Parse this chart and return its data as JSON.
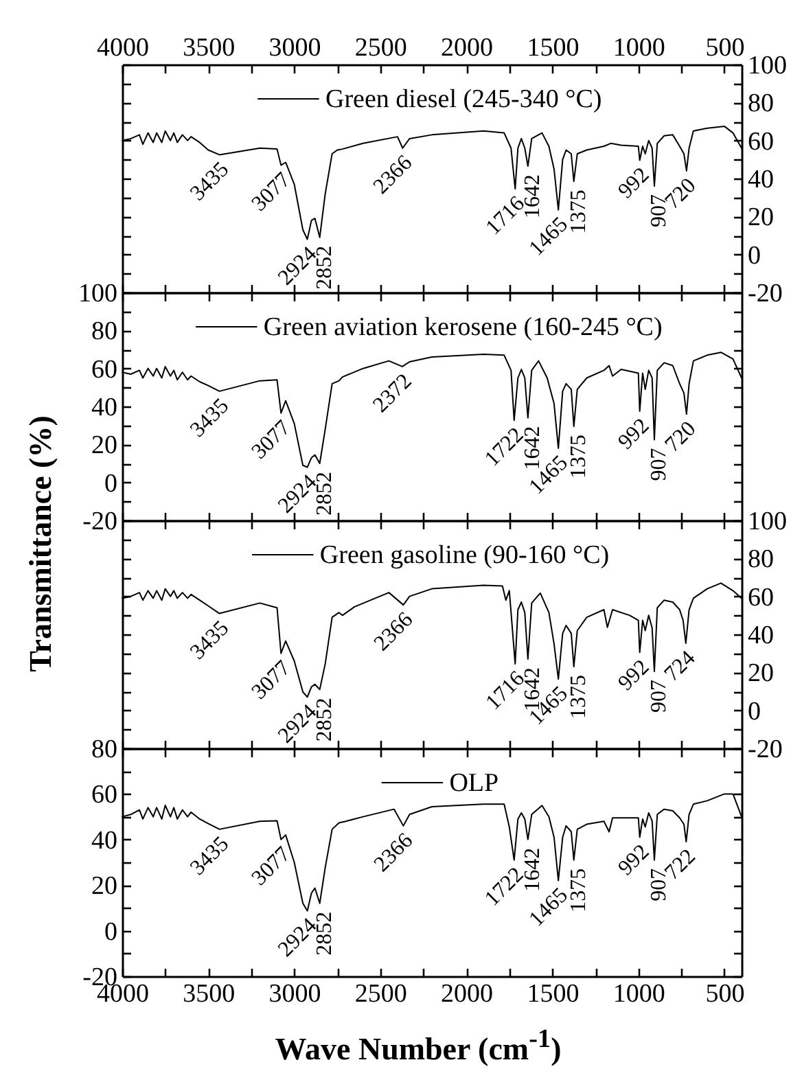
{
  "chart_data": [
    {
      "type": "line",
      "xlim": [
        4000,
        400
      ],
      "tick_labels": "y",
      "x2lim": [
        4000,
        400
      ],
      "x2ticks": [
        4000,
        {
          "value": 3750,
          "label": null
        },
        3500,
        {
          "value": 3250,
          "label": null
        },
        3000,
        {
          "value": 2750,
          "label": null
        },
        2500,
        {
          "value": 2250,
          "label": null
        },
        2000,
        {
          "value": 1750,
          "label": null
        },
        1500,
        {
          "value": 1250,
          "label": null
        },
        1000,
        {
          "value": 750,
          "label": null
        },
        500
      ],
      "ylim": [
        -20,
        100
      ],
      "yticks": [
        -20,
        {
          "value": -10,
          "label": null
        },
        0,
        {
          "value": 10,
          "label": null
        },
        20,
        {
          "value": 30,
          "label": null
        },
        40,
        {
          "value": 50,
          "label": null
        },
        60,
        {
          "value": 70,
          "label": null
        },
        80,
        {
          "value": 90,
          "label": null
        },
        100
      ],
      "legend": "top",
      "x": [
        4000,
        3950,
        3900,
        3880,
        3850,
        3820,
        3800,
        3770,
        3750,
        3720,
        3700,
        3680,
        3650,
        3620,
        3600,
        3550,
        3500,
        3435,
        3200,
        3100,
        3077,
        3050,
        3000,
        2950,
        2924,
        2900,
        2880,
        2852,
        2820,
        2780,
        2750,
        2720,
        2600,
        2400,
        2370,
        2330,
        2200,
        1900,
        1780,
        1740,
        1716,
        1700,
        1680,
        1660,
        1642,
        1620,
        1560,
        1520,
        1490,
        1465,
        1440,
        1420,
        1390,
        1375,
        1355,
        1300,
        1200,
        1160,
        1100,
        1000,
        992,
        975,
        960,
        940,
        920,
        907,
        890,
        850,
        800,
        760,
        735,
        720,
        705,
        680,
        600,
        500,
        450,
        400
      ],
      "series": [
        {
          "name": "Green diesel (245-340 °C)",
          "color": "#000000",
          "values": [
            60,
            61,
            63,
            58,
            64,
            59,
            64,
            59,
            65,
            60,
            64,
            59,
            63,
            60,
            62,
            59,
            55,
            52.5,
            56,
            55.5,
            47,
            48.5,
            37,
            13,
            8,
            18,
            19,
            9,
            32,
            53,
            55,
            55.5,
            58.5,
            62,
            56,
            61,
            63,
            65,
            64,
            56,
            34.5,
            56,
            61,
            56,
            46.5,
            61,
            64,
            57,
            45,
            23.5,
            50,
            55,
            53,
            38.5,
            53,
            55,
            57,
            58.5,
            57.5,
            57,
            49.6,
            57,
            53,
            60,
            56,
            36,
            58.5,
            62.5,
            63,
            57,
            53,
            44,
            56,
            65,
            66.5,
            67.5,
            64,
            56
          ]
        }
      ],
      "annotations": [
        {
          "text": "3435",
          "x": 3435,
          "y": 52.5
        },
        {
          "text": "3077",
          "x": 3077,
          "y": 47
        },
        {
          "text": "2924",
          "x": 2924,
          "y": 8
        },
        {
          "text": "2852",
          "x": 2852,
          "y": 9
        },
        {
          "text": "2366",
          "x": 2370,
          "y": 56
        },
        {
          "text": "1716",
          "x": 1716,
          "y": 34.5
        },
        {
          "text": "1642",
          "x": 1642,
          "y": 46.5
        },
        {
          "text": "1465",
          "x": 1465,
          "y": 23.5
        },
        {
          "text": "1375",
          "x": 1375,
          "y": 38.5
        },
        {
          "text": "992",
          "x": 992,
          "y": 49.6
        },
        {
          "text": "907",
          "x": 907,
          "y": 36
        },
        {
          "text": "720",
          "x": 720,
          "y": 44
        }
      ]
    },
    {
      "type": "line",
      "xlim": [
        4000,
        400
      ],
      "xticks": [
        4000,
        {
          "value": 3750,
          "label": null
        },
        3500,
        {
          "value": 3250,
          "label": null
        },
        3000,
        {
          "value": 2750,
          "label": null
        },
        2500,
        {
          "value": 2250,
          "label": null
        },
        2000,
        {
          "value": 1750,
          "label": null
        },
        1500,
        {
          "value": 1250,
          "label": null
        },
        1000,
        {
          "value": 750,
          "label": null
        },
        500
      ],
      "ylim": [
        -20,
        100
      ],
      "yticks": [
        -20,
        {
          "value": -10,
          "label": null
        },
        0,
        {
          "value": 10,
          "label": null
        },
        20,
        {
          "value": 30,
          "label": null
        },
        40,
        {
          "value": 50,
          "label": null
        },
        60,
        {
          "value": 70,
          "label": null
        },
        80,
        {
          "value": 90,
          "label": null
        },
        100
      ],
      "tick_labels": "y",
      "legend": "top",
      "ylabel": "Transmittance (%)",
      "x": [
        4000,
        3950,
        3900,
        3880,
        3850,
        3820,
        3800,
        3770,
        3750,
        3720,
        3700,
        3680,
        3650,
        3620,
        3600,
        3550,
        3500,
        3435,
        3200,
        3100,
        3077,
        3050,
        3000,
        2950,
        2924,
        2900,
        2880,
        2852,
        2820,
        2780,
        2740,
        2720,
        2600,
        2450,
        2372,
        2330,
        2200,
        1900,
        1780,
        1740,
        1722,
        1700,
        1680,
        1660,
        1642,
        1620,
        1580,
        1530,
        1490,
        1465,
        1440,
        1420,
        1390,
        1375,
        1355,
        1300,
        1200,
        1170,
        1150,
        1100,
        1000,
        992,
        975,
        960,
        940,
        920,
        907,
        890,
        850,
        800,
        760,
        735,
        720,
        705,
        680,
        600,
        520,
        450,
        400
      ],
      "series": [
        {
          "name": "Green aviation kerosene (160-245 °C)",
          "color": "#000000",
          "values": [
            58,
            57,
            59,
            55,
            60,
            56,
            60,
            55,
            61,
            56,
            59,
            54,
            58,
            54,
            56,
            53,
            51,
            48,
            53.5,
            54,
            36.5,
            43,
            31,
            9,
            8,
            13,
            14.5,
            10,
            28,
            52,
            53.5,
            55.5,
            60,
            64,
            61,
            63.5,
            66,
            67.5,
            67,
            59,
            32.7,
            55,
            59.5,
            55,
            34,
            59,
            64,
            55,
            41.5,
            18,
            48,
            52,
            49,
            29.5,
            49,
            55,
            59,
            61.5,
            56,
            59.5,
            57.5,
            37.5,
            57.5,
            49,
            59,
            55,
            22.5,
            59,
            63,
            61.5,
            52,
            47,
            36,
            52,
            64,
            67,
            68.5,
            65,
            55
          ]
        }
      ],
      "annotations": [
        {
          "text": "3435",
          "x": 3435,
          "y": 48
        },
        {
          "text": "3077",
          "x": 3077,
          "y": 36.5
        },
        {
          "text": "2924",
          "x": 2924,
          "y": 8
        },
        {
          "text": "2852",
          "x": 2852,
          "y": 10
        },
        {
          "text": "2372",
          "x": 2372,
          "y": 61
        },
        {
          "text": "1722",
          "x": 1722,
          "y": 32.7
        },
        {
          "text": "1642",
          "x": 1642,
          "y": 34
        },
        {
          "text": "1465",
          "x": 1465,
          "y": 18
        },
        {
          "text": "1375",
          "x": 1375,
          "y": 29.5
        },
        {
          "text": "992",
          "x": 992,
          "y": 37.5
        },
        {
          "text": "907",
          "x": 907,
          "y": 22.5
        },
        {
          "text": "720",
          "x": 720,
          "y": 36
        }
      ]
    },
    {
      "type": "line",
      "xlim": [
        4000,
        400
      ],
      "xticks": [
        4000,
        {
          "value": 3750,
          "label": null
        },
        3500,
        {
          "value": 3250,
          "label": null
        },
        3000,
        {
          "value": 2750,
          "label": null
        },
        2500,
        {
          "value": 2250,
          "label": null
        },
        2000,
        {
          "value": 1750,
          "label": null
        },
        1500,
        {
          "value": 1250,
          "label": null
        },
        1000,
        {
          "value": 750,
          "label": null
        },
        500
      ],
      "ylim": [
        -20,
        100
      ],
      "yticks": [
        -20,
        {
          "value": -10,
          "label": null
        },
        0,
        {
          "value": 10,
          "label": null
        },
        20,
        {
          "value": 30,
          "label": null
        },
        40,
        {
          "value": 50,
          "label": null
        },
        60,
        {
          "value": 70,
          "label": null
        },
        80,
        {
          "value": 90,
          "label": null
        },
        100
      ],
      "tick_labels": "y",
      "legend": "top",
      "x": [
        4000,
        3950,
        3900,
        3880,
        3850,
        3820,
        3800,
        3770,
        3750,
        3720,
        3700,
        3680,
        3650,
        3620,
        3600,
        3550,
        3500,
        3435,
        3200,
        3100,
        3077,
        3050,
        3000,
        2950,
        2924,
        2900,
        2880,
        2852,
        2820,
        2780,
        2740,
        2720,
        2650,
        2450,
        2366,
        2330,
        2200,
        1900,
        1790,
        1770,
        1750,
        1716,
        1700,
        1680,
        1660,
        1642,
        1620,
        1570,
        1520,
        1490,
        1465,
        1440,
        1420,
        1390,
        1375,
        1355,
        1300,
        1200,
        1180,
        1150,
        1050,
        1000,
        992,
        975,
        960,
        940,
        920,
        907,
        890,
        850,
        800,
        760,
        740,
        724,
        705,
        680,
        600,
        520,
        450,
        400
      ],
      "series": [
        {
          "name": "Green gasoline (90-160 °C)",
          "color": "#000000",
          "values": [
            59,
            60,
            62,
            58,
            63,
            59,
            63,
            58,
            64,
            60,
            63,
            59,
            62,
            59,
            61,
            58,
            55,
            51,
            56.5,
            54,
            30,
            36.5,
            26,
            9.7,
            7,
            12.4,
            13.7,
            11,
            24.5,
            49,
            51.5,
            50,
            54.5,
            62,
            55.5,
            60,
            64,
            65.8,
            65.5,
            58,
            63,
            24.5,
            53,
            57,
            51.5,
            27,
            56.5,
            61.7,
            51.5,
            35,
            16.5,
            40.5,
            44.7,
            40.5,
            23,
            42,
            49,
            53,
            43.7,
            53,
            50,
            47.4,
            30.5,
            47.4,
            42,
            50,
            43.4,
            20.5,
            54,
            58,
            57,
            53,
            47.4,
            35.3,
            53,
            59,
            64,
            67,
            63,
            59
          ]
        }
      ],
      "annotations": [
        {
          "text": "3435",
          "x": 3435,
          "y": 51
        },
        {
          "text": "3077",
          "x": 3077,
          "y": 30
        },
        {
          "text": "2924",
          "x": 2924,
          "y": 7
        },
        {
          "text": "2852",
          "x": 2852,
          "y": 11
        },
        {
          "text": "2366",
          "x": 2366,
          "y": 55.5
        },
        {
          "text": "1716",
          "x": 1716,
          "y": 24.5
        },
        {
          "text": "1642",
          "x": 1642,
          "y": 27
        },
        {
          "text": "1465",
          "x": 1465,
          "y": 16.5
        },
        {
          "text": "1375",
          "x": 1375,
          "y": 23
        },
        {
          "text": "992",
          "x": 992,
          "y": 30.5
        },
        {
          "text": "907",
          "x": 907,
          "y": 20.5
        },
        {
          "text": "724",
          "x": 724,
          "y": 35.3
        }
      ]
    },
    {
      "type": "line",
      "xlim": [
        4000,
        400
      ],
      "xticks": [
        4000,
        {
          "value": 3750,
          "label": null
        },
        3500,
        {
          "value": 3250,
          "label": null
        },
        3000,
        {
          "value": 2750,
          "label": null
        },
        2500,
        {
          "value": 2250,
          "label": null
        },
        2000,
        {
          "value": 1750,
          "label": null
        },
        1500,
        {
          "value": 1250,
          "label": null
        },
        1000,
        {
          "value": 750,
          "label": null
        },
        500
      ],
      "ylim": [
        -20,
        80
      ],
      "yticks": [
        -20,
        {
          "value": -10,
          "label": null
        },
        0,
        {
          "value": 10,
          "label": null
        },
        20,
        {
          "value": 30,
          "label": null
        },
        40,
        {
          "value": 50,
          "label": null
        },
        60,
        {
          "value": 70,
          "label": null
        },
        80
      ],
      "legend": "top",
      "xlabel": "Wave Number (cm$^{-1}$)",
      "x": [
        4000,
        3950,
        3900,
        3880,
        3850,
        3820,
        3800,
        3770,
        3750,
        3720,
        3700,
        3680,
        3650,
        3620,
        3600,
        3550,
        3500,
        3435,
        3200,
        3100,
        3077,
        3050,
        3000,
        2950,
        2924,
        2900,
        2880,
        2852,
        2820,
        2780,
        2740,
        2700,
        2600,
        2420,
        2366,
        2330,
        2200,
        1900,
        1780,
        1750,
        1722,
        1700,
        1680,
        1660,
        1642,
        1620,
        1560,
        1520,
        1490,
        1465,
        1440,
        1420,
        1390,
        1375,
        1355,
        1300,
        1200,
        1170,
        1150,
        1000,
        992,
        975,
        960,
        940,
        920,
        907,
        890,
        850,
        800,
        760,
        735,
        722,
        705,
        680,
        600,
        500,
        450,
        400
      ],
      "series": [
        {
          "name": "OLP",
          "color": "#000000",
          "values": [
            50,
            51,
            53,
            49,
            54,
            50,
            54,
            49,
            55,
            50,
            54,
            49,
            53,
            50,
            52,
            49,
            47,
            44.5,
            48,
            48.2,
            40,
            42,
            30,
            12,
            8.7,
            16.5,
            18.7,
            12,
            27.7,
            44.5,
            47.3,
            48,
            50,
            53.3,
            46,
            51,
            54.4,
            55.5,
            55.5,
            45.5,
            31,
            49,
            51.7,
            49,
            40,
            51,
            54.9,
            50,
            41,
            22,
            41,
            46,
            43.4,
            31,
            44.5,
            46.7,
            48,
            43.4,
            49.5,
            49.5,
            41,
            49,
            45.5,
            51.7,
            48.2,
            31,
            51,
            53.3,
            52.6,
            49.5,
            46.7,
            39,
            51,
            55.5,
            57,
            60,
            60,
            50
          ]
        }
      ],
      "annotations": [
        {
          "text": "3435",
          "x": 3435,
          "y": 44.5
        },
        {
          "text": "3077",
          "x": 3077,
          "y": 40
        },
        {
          "text": "2924",
          "x": 2924,
          "y": 8.7
        },
        {
          "text": "2852",
          "x": 2852,
          "y": 12
        },
        {
          "text": "2366",
          "x": 2366,
          "y": 46
        },
        {
          "text": "1722",
          "x": 1722,
          "y": 31
        },
        {
          "text": "1642",
          "x": 1642,
          "y": 40
        },
        {
          "text": "1465",
          "x": 1465,
          "y": 22
        },
        {
          "text": "1375",
          "x": 1375,
          "y": 31
        },
        {
          "text": "992",
          "x": 992,
          "y": 41
        },
        {
          "text": "907",
          "x": 907,
          "y": 31
        },
        {
          "text": "722",
          "x": 722,
          "y": 39
        }
      ]
    }
  ]
}
